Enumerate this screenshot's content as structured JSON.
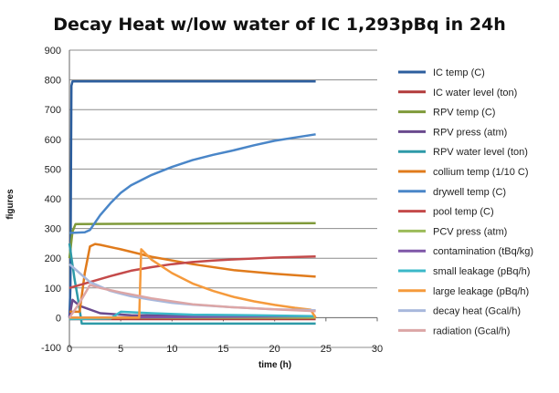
{
  "chart_data": {
    "type": "line",
    "title": "Decay Heat w/low water of IC   1,293pBq in 24h",
    "xlabel": "time (h)",
    "ylabel": "figures",
    "xlim": [
      0,
      30
    ],
    "ylim": [
      -100,
      900
    ],
    "xticks": [
      "0",
      "5",
      "10",
      "15",
      "20",
      "25",
      "30"
    ],
    "yticks": [
      "-100",
      "0",
      "100",
      "200",
      "300",
      "400",
      "500",
      "600",
      "700",
      "800",
      "900"
    ],
    "grid": "horizontal",
    "legend_position": "right",
    "series": [
      {
        "name": "IC temp (C)",
        "color": "#2c5e9e",
        "points": [
          [
            0,
            0
          ],
          [
            0.1,
            100
          ],
          [
            0.2,
            780
          ],
          [
            0.3,
            795
          ],
          [
            24,
            795
          ]
        ]
      },
      {
        "name": "IC water level (ton)",
        "color": "#b23b3b",
        "points": [
          [
            0,
            -5
          ],
          [
            24,
            -5
          ]
        ]
      },
      {
        "name": "RPV temp (C)",
        "color": "#7f9a3a",
        "points": [
          [
            0,
            200
          ],
          [
            0.3,
            290
          ],
          [
            0.6,
            315
          ],
          [
            24,
            318
          ]
        ]
      },
      {
        "name": "RPV press (atm)",
        "color": "#6a4a8e",
        "points": [
          [
            0,
            0
          ],
          [
            0.3,
            60
          ],
          [
            1,
            40
          ],
          [
            3,
            15
          ],
          [
            6,
            8
          ],
          [
            24,
            3
          ]
        ]
      },
      {
        "name": "RPV water level (ton)",
        "color": "#2e9aa8",
        "points": [
          [
            0,
            250
          ],
          [
            0.5,
            130
          ],
          [
            0.9,
            50
          ],
          [
            1.2,
            -20
          ],
          [
            24,
            -20
          ]
        ]
      },
      {
        "name": "collium temp (1/10 C)",
        "color": "#e07b1c",
        "points": [
          [
            0,
            20
          ],
          [
            1,
            20
          ],
          [
            1.5,
            150
          ],
          [
            2,
            240
          ],
          [
            2.5,
            248
          ],
          [
            3,
            245
          ],
          [
            5,
            230
          ],
          [
            8,
            205
          ],
          [
            12,
            180
          ],
          [
            16,
            160
          ],
          [
            20,
            148
          ],
          [
            24,
            138
          ]
        ]
      },
      {
        "name": "drywell temp (C)",
        "color": "#4a86c8",
        "points": [
          [
            0,
            285
          ],
          [
            1.5,
            287
          ],
          [
            2,
            295
          ],
          [
            2.5,
            320
          ],
          [
            3,
            345
          ],
          [
            4,
            385
          ],
          [
            5,
            420
          ],
          [
            6,
            445
          ],
          [
            8,
            480
          ],
          [
            10,
            507
          ],
          [
            12,
            530
          ],
          [
            14,
            548
          ],
          [
            16,
            563
          ],
          [
            18,
            580
          ],
          [
            20,
            595
          ],
          [
            22,
            606
          ],
          [
            24,
            617
          ]
        ]
      },
      {
        "name": "pool temp (C)",
        "color": "#c44a4a",
        "points": [
          [
            0,
            100
          ],
          [
            2,
            120
          ],
          [
            4,
            140
          ],
          [
            6,
            158
          ],
          [
            8,
            170
          ],
          [
            10,
            180
          ],
          [
            12,
            187
          ],
          [
            14,
            192
          ],
          [
            16,
            196
          ],
          [
            18,
            199
          ],
          [
            20,
            202
          ],
          [
            22,
            204
          ],
          [
            24,
            206
          ]
        ]
      },
      {
        "name": "PCV press (atm)",
        "color": "#9bbb59",
        "points": [
          [
            0,
            0
          ],
          [
            24,
            0
          ]
        ]
      },
      {
        "name": "contamination (tBq/kg)",
        "color": "#7e57a8",
        "points": [
          [
            0,
            0
          ],
          [
            24,
            5
          ]
        ]
      },
      {
        "name": "small leakage (pBq/h)",
        "color": "#3bb8c8",
        "points": [
          [
            0,
            -5
          ],
          [
            4,
            -3
          ],
          [
            5,
            20
          ],
          [
            8,
            15
          ],
          [
            12,
            10
          ],
          [
            18,
            8
          ],
          [
            24,
            5
          ]
        ]
      },
      {
        "name": "large leakage (pBq/h)",
        "color": "#f59a3c",
        "points": [
          [
            0,
            0
          ],
          [
            6.8,
            0
          ],
          [
            7,
            230
          ],
          [
            8,
            195
          ],
          [
            10,
            150
          ],
          [
            12,
            115
          ],
          [
            14,
            90
          ],
          [
            16,
            70
          ],
          [
            18,
            55
          ],
          [
            20,
            43
          ],
          [
            22,
            33
          ],
          [
            23.5,
            27
          ],
          [
            24,
            0
          ]
        ]
      },
      {
        "name": "decay heat (Gcal/h)",
        "color": "#a8b8dc",
        "points": [
          [
            0,
            180
          ],
          [
            1,
            150
          ],
          [
            2,
            120
          ],
          [
            4,
            90
          ],
          [
            6,
            72
          ],
          [
            8,
            60
          ],
          [
            10,
            50
          ],
          [
            12,
            44
          ],
          [
            16,
            35
          ],
          [
            20,
            28
          ],
          [
            24,
            25
          ]
        ]
      },
      {
        "name": "radiation (Gcal/h)",
        "color": "#dca6a6",
        "points": [
          [
            0,
            0
          ],
          [
            1,
            50
          ],
          [
            2,
            110
          ],
          [
            3,
            100
          ],
          [
            5,
            85
          ],
          [
            8,
            65
          ],
          [
            12,
            45
          ],
          [
            16,
            35
          ],
          [
            20,
            28
          ],
          [
            24,
            22
          ]
        ]
      }
    ]
  }
}
